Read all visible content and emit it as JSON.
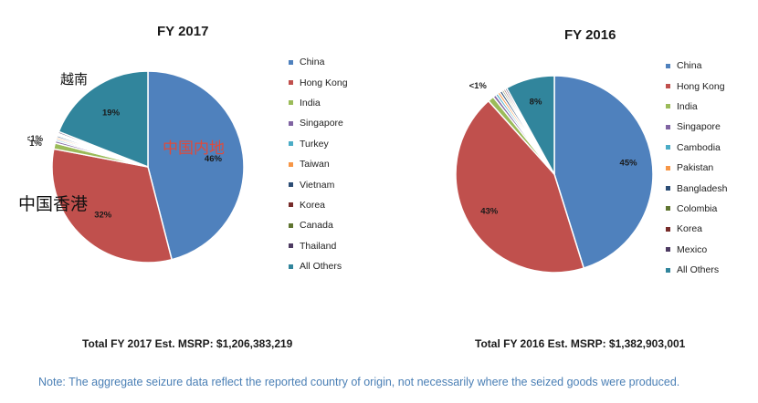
{
  "colors": {
    "China": "#4f81bd",
    "Hong Kong": "#c0504d",
    "India": "#9bbb59",
    "Singapore": "#8064a2",
    "Turkey": "#4bacc6",
    "Taiwan": "#f79646",
    "Vietnam": "#2c4d75",
    "Korea": "#772c2a",
    "Canada": "#5f7530",
    "Thailand": "#4d3b62",
    "All Others": "#31859c",
    "Cambodia": "#4bacc6",
    "Pakistan": "#f79646",
    "Bangladesh": "#2c4d75",
    "Colombia": "#5f7530",
    "Mexico": "#4d3b62"
  },
  "chart_data": [
    {
      "type": "pie",
      "title": "FY 2017",
      "labels": [
        "China",
        "Hong Kong",
        "India",
        "Singapore",
        "Turkey",
        "Taiwan",
        "Vietnam",
        "Korea",
        "Canada",
        "Thailand",
        "All Others"
      ],
      "values": [
        46,
        32,
        1,
        0.4,
        0.3,
        0.3,
        0.3,
        0.2,
        0.2,
        0.3,
        19
      ],
      "data_labels": [
        "46%",
        "32%",
        "1%",
        "<1%",
        "",
        "",
        "",
        "",
        "",
        "",
        "19%"
      ],
      "total_label": "Total FY 2017 Est. MSRP:  $1,206,383,219",
      "annotations": [
        "越南",
        "中国内地",
        "中国香港"
      ]
    },
    {
      "type": "pie",
      "title": "FY 2016",
      "labels": [
        "China",
        "Hong Kong",
        "India",
        "Singapore",
        "Cambodia",
        "Pakistan",
        "Bangladesh",
        "Colombia",
        "Korea",
        "Mexico",
        "All Others"
      ],
      "values": [
        45,
        43,
        1,
        0.5,
        0.4,
        0.4,
        0.4,
        0.3,
        0.3,
        0.3,
        8
      ],
      "data_labels": [
        "45%",
        "43%",
        "",
        "<1%",
        "",
        "",
        "",
        "",
        "",
        "",
        "8%"
      ],
      "total_label": "Total FY 2016 Est. MSRP:  $1,382,903,001"
    }
  ],
  "footer": {
    "note": "Note: The aggregate seizure data reflect the reported country of origin, not necessarily where the seized goods were produced."
  }
}
